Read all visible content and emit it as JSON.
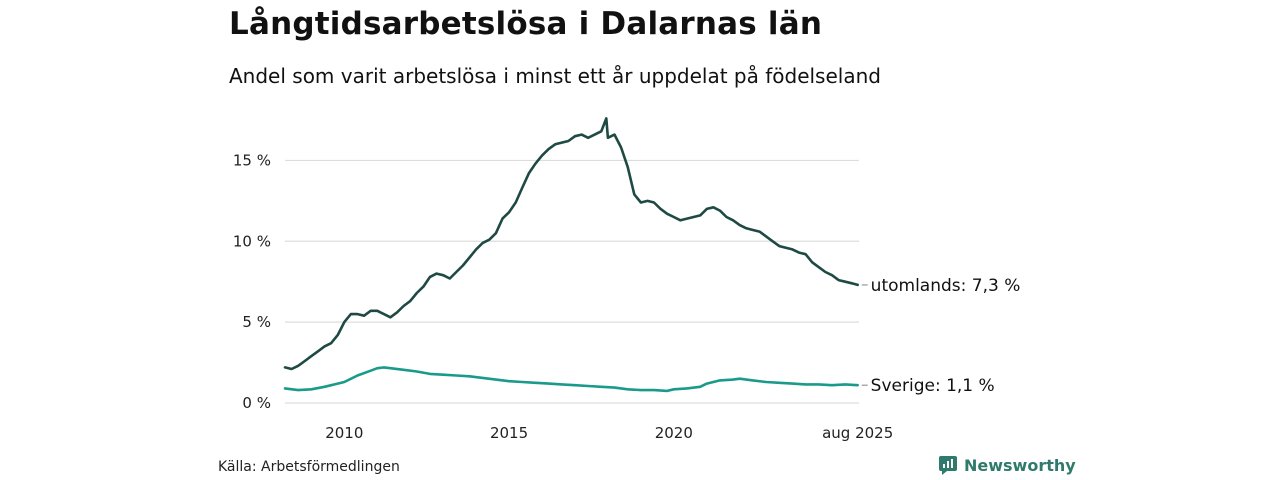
{
  "header": {
    "title": "Långtidsarbetslösa i Dalarnas län",
    "subtitle": "Andel som varit arbetslösa i minst ett år uppdelat på födelseland"
  },
  "footer": {
    "source": "Källa: Arbetsförmedlingen",
    "brand": "Newsworthy",
    "brand_icon": "newsworthy-logo-icon"
  },
  "colors": {
    "utomlands": "#1f4a43",
    "sverige": "#1a9a8a",
    "grid": "#dddddd",
    "brand": "#2f7a6c"
  },
  "chart_data": {
    "type": "line",
    "title": "Långtidsarbetslösa i Dalarnas län",
    "subtitle": "Andel som varit arbetslösa i minst ett år uppdelat på födelseland",
    "xlabel": "",
    "ylabel": "",
    "xlim": [
      2008.2,
      2025.62
    ],
    "ylim": [
      0,
      17.5
    ],
    "x_ticks": [
      {
        "value": 2010,
        "label": "2010"
      },
      {
        "value": 2015,
        "label": "2015"
      },
      {
        "value": 2020,
        "label": "2020"
      },
      {
        "value": 2025.58,
        "label": "aug 2025"
      }
    ],
    "y_ticks": [
      {
        "value": 0,
        "label": "0 %"
      },
      {
        "value": 5,
        "label": "5 %"
      },
      {
        "value": 10,
        "label": "10 %"
      },
      {
        "value": 15,
        "label": "15 %"
      }
    ],
    "grid": true,
    "end_labels": true,
    "series": [
      {
        "name": "utomlands",
        "end_label": "utomlands: 7,3 %",
        "x": [
          2008.2,
          2008.4,
          2008.6,
          2008.8,
          2009.0,
          2009.2,
          2009.4,
          2009.6,
          2009.8,
          2010.0,
          2010.2,
          2010.4,
          2010.6,
          2010.8,
          2011.0,
          2011.2,
          2011.4,
          2011.6,
          2011.8,
          2012.0,
          2012.2,
          2012.4,
          2012.6,
          2012.8,
          2013.0,
          2013.2,
          2013.4,
          2013.6,
          2013.8,
          2014.0,
          2014.2,
          2014.4,
          2014.6,
          2014.8,
          2015.0,
          2015.2,
          2015.4,
          2015.6,
          2015.8,
          2016.0,
          2016.2,
          2016.4,
          2016.6,
          2016.8,
          2017.0,
          2017.2,
          2017.4,
          2017.6,
          2017.8,
          2017.95,
          2018.0,
          2018.2,
          2018.4,
          2018.6,
          2018.8,
          2019.0,
          2019.2,
          2019.4,
          2019.6,
          2019.8,
          2020.0,
          2020.2,
          2020.4,
          2020.6,
          2020.8,
          2021.0,
          2021.2,
          2021.4,
          2021.6,
          2021.8,
          2022.0,
          2022.2,
          2022.4,
          2022.6,
          2022.8,
          2023.0,
          2023.2,
          2023.4,
          2023.6,
          2023.8,
          2024.0,
          2024.2,
          2024.4,
          2024.6,
          2024.8,
          2025.0,
          2025.2,
          2025.4,
          2025.58
        ],
        "values": [
          2.2,
          2.1,
          2.3,
          2.6,
          2.9,
          3.2,
          3.5,
          3.7,
          4.2,
          5.0,
          5.5,
          5.5,
          5.4,
          5.7,
          5.7,
          5.5,
          5.3,
          5.6,
          6.0,
          6.3,
          6.8,
          7.2,
          7.8,
          8.0,
          7.9,
          7.7,
          8.1,
          8.5,
          9.0,
          9.5,
          9.9,
          10.1,
          10.5,
          11.4,
          11.8,
          12.4,
          13.3,
          14.2,
          14.8,
          15.3,
          15.7,
          16.0,
          16.1,
          16.2,
          16.5,
          16.6,
          16.4,
          16.6,
          16.8,
          17.6,
          16.4,
          16.6,
          15.8,
          14.6,
          12.9,
          12.4,
          12.5,
          12.4,
          12.0,
          11.7,
          11.5,
          11.3,
          11.4,
          11.5,
          11.6,
          12.0,
          12.1,
          11.9,
          11.5,
          11.3,
          11.0,
          10.8,
          10.7,
          10.6,
          10.3,
          10.0,
          9.7,
          9.6,
          9.5,
          9.3,
          9.2,
          8.7,
          8.4,
          8.1,
          7.9,
          7.6,
          7.5,
          7.4,
          7.3
        ]
      },
      {
        "name": "Sverige",
        "end_label": "Sverige: 1,1 %",
        "x": [
          2008.2,
          2008.6,
          2009.0,
          2009.4,
          2009.8,
          2010.0,
          2010.4,
          2010.8,
          2011.0,
          2011.2,
          2011.4,
          2011.8,
          2012.2,
          2012.6,
          2013.0,
          2013.4,
          2013.8,
          2014.2,
          2014.6,
          2015.0,
          2015.4,
          2015.8,
          2016.2,
          2016.6,
          2017.0,
          2017.4,
          2017.8,
          2018.2,
          2018.6,
          2019.0,
          2019.4,
          2019.8,
          2020.0,
          2020.4,
          2020.8,
          2021.0,
          2021.4,
          2021.8,
          2022.0,
          2022.4,
          2022.8,
          2023.2,
          2023.6,
          2024.0,
          2024.4,
          2024.8,
          2025.2,
          2025.58
        ],
        "values": [
          0.9,
          0.8,
          0.85,
          1.0,
          1.2,
          1.3,
          1.7,
          2.0,
          2.15,
          2.2,
          2.15,
          2.05,
          1.95,
          1.8,
          1.75,
          1.7,
          1.65,
          1.55,
          1.45,
          1.35,
          1.3,
          1.25,
          1.2,
          1.15,
          1.1,
          1.05,
          1.0,
          0.95,
          0.85,
          0.8,
          0.8,
          0.75,
          0.85,
          0.9,
          1.0,
          1.2,
          1.4,
          1.45,
          1.5,
          1.4,
          1.3,
          1.25,
          1.2,
          1.15,
          1.15,
          1.1,
          1.15,
          1.1
        ]
      }
    ]
  }
}
